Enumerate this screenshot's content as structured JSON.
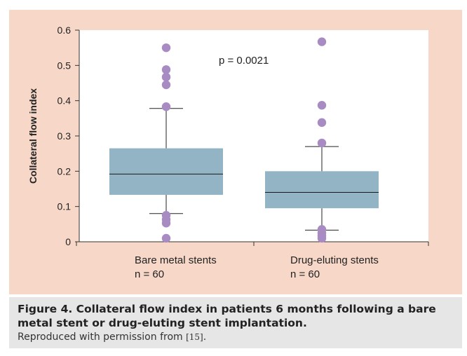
{
  "chart_data": {
    "type": "box",
    "title": "",
    "xlabel": "",
    "ylabel": "Collateral flow index",
    "ylim": [
      0,
      0.6
    ],
    "yticks": [
      0,
      0.1,
      0.2,
      0.3,
      0.4,
      0.5,
      0.6
    ],
    "ytick_labels": [
      "0",
      "0.1",
      "0.2",
      "0.3",
      "0.4",
      "0.5",
      "0.6"
    ],
    "annotation": "p = 0.0021",
    "groups": [
      {
        "name": "Bare metal stents",
        "n_label": "n = 60",
        "whisker_low": 0.08,
        "q1": 0.133,
        "median": 0.192,
        "q3": 0.265,
        "whisker_high": 0.378,
        "outliers": [
          0.55,
          0.488,
          0.467,
          0.445,
          0.383,
          0.075,
          0.063,
          0.053,
          0.01
        ]
      },
      {
        "name": "Drug-eluting stents",
        "n_label": "n = 60",
        "whisker_low": 0.033,
        "q1": 0.095,
        "median": 0.14,
        "q3": 0.2,
        "whisker_high": 0.27,
        "outliers": [
          0.567,
          0.387,
          0.338,
          0.28,
          0.035,
          0.025,
          0.017,
          0.01
        ]
      }
    ],
    "colors": {
      "box": "#93b4c5",
      "outlier": "#a98bc3",
      "axis": "#333333"
    }
  },
  "caption": {
    "title": "Figure 4. Collateral flow index in patients 6 months following a bare metal stent or drug-eluting stent implantation.",
    "credit_prefix": "Reproduced with permission from ",
    "reference": "[15]",
    "credit_suffix": "."
  }
}
